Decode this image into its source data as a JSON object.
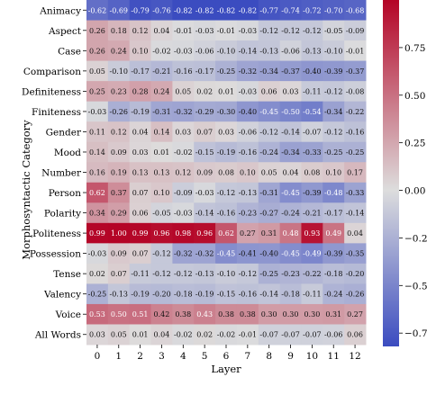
{
  "chart_data": {
    "type": "heatmap",
    "xlabel": "Layer",
    "ylabel": "Morphosyntactic Category",
    "x": [
      "0",
      "1",
      "2",
      "3",
      "4",
      "5",
      "6",
      "7",
      "8",
      "9",
      "10",
      "11",
      "12"
    ],
    "y": [
      "Animacy",
      "Aspect",
      "Case",
      "Comparison",
      "Definiteness",
      "Finiteness",
      "Gender",
      "Mood",
      "Number",
      "Person",
      "Polarity",
      "Politeness",
      "Possession",
      "Tense",
      "Valency",
      "Voice",
      "All Words"
    ],
    "values": [
      [
        -0.62,
        -0.69,
        -0.79,
        -0.76,
        -0.82,
        -0.82,
        -0.82,
        -0.82,
        -0.77,
        -0.74,
        -0.72,
        -0.7,
        -0.68
      ],
      [
        0.26,
        0.18,
        0.12,
        0.04,
        -0.01,
        -0.03,
        -0.01,
        -0.03,
        -0.12,
        -0.12,
        -0.12,
        -0.05,
        -0.09
      ],
      [
        0.26,
        0.24,
        0.1,
        -0.02,
        -0.03,
        -0.06,
        -0.1,
        -0.14,
        -0.13,
        -0.06,
        -0.13,
        -0.1,
        -0.01
      ],
      [
        0.05,
        -0.1,
        -0.17,
        -0.21,
        -0.16,
        -0.17,
        -0.25,
        -0.32,
        -0.34,
        -0.37,
        -0.4,
        -0.39,
        -0.37
      ],
      [
        0.25,
        0.23,
        0.28,
        0.24,
        0.05,
        0.02,
        0.01,
        -0.03,
        0.06,
        0.03,
        -0.11,
        -0.12,
        -0.08
      ],
      [
        -0.03,
        -0.26,
        -0.19,
        -0.31,
        -0.32,
        -0.29,
        -0.3,
        -0.4,
        -0.45,
        -0.5,
        -0.54,
        -0.34,
        -0.22
      ],
      [
        0.11,
        0.12,
        0.04,
        0.14,
        0.03,
        0.07,
        0.03,
        -0.06,
        -0.12,
        -0.14,
        -0.07,
        -0.12,
        -0.16
      ],
      [
        0.14,
        0.09,
        0.03,
        0.01,
        -0.02,
        -0.15,
        -0.19,
        -0.16,
        -0.24,
        -0.34,
        -0.33,
        -0.25,
        -0.25
      ],
      [
        0.16,
        0.19,
        0.13,
        0.13,
        0.12,
        0.09,
        0.08,
        0.1,
        0.05,
        0.04,
        0.08,
        0.1,
        0.17
      ],
      [
        0.62,
        0.37,
        0.07,
        0.1,
        -0.09,
        -0.03,
        -0.12,
        -0.13,
        -0.31,
        -0.45,
        -0.39,
        -0.48,
        -0.33
      ],
      [
        0.34,
        0.29,
        0.06,
        -0.05,
        -0.03,
        -0.14,
        -0.16,
        -0.23,
        -0.27,
        -0.24,
        -0.21,
        -0.17,
        -0.14
      ],
      [
        0.99,
        1.0,
        0.99,
        0.96,
        0.98,
        0.96,
        0.62,
        0.27,
        0.31,
        0.48,
        0.93,
        0.49,
        0.04
      ],
      [
        -0.03,
        0.09,
        0.07,
        -0.12,
        -0.32,
        -0.32,
        -0.45,
        -0.41,
        -0.4,
        -0.45,
        -0.49,
        -0.39,
        -0.35
      ],
      [
        0.02,
        0.07,
        -0.11,
        -0.12,
        -0.12,
        -0.13,
        -0.1,
        -0.12,
        -0.25,
        -0.23,
        -0.22,
        -0.18,
        -0.2
      ],
      [
        -0.25,
        -0.13,
        -0.19,
        -0.2,
        -0.18,
        -0.19,
        -0.15,
        -0.16,
        -0.14,
        -0.18,
        -0.11,
        -0.24,
        -0.26
      ],
      [
        0.53,
        0.5,
        0.51,
        0.42,
        0.38,
        0.43,
        0.38,
        0.38,
        0.3,
        0.3,
        0.3,
        0.31,
        0.27
      ],
      [
        0.03,
        0.05,
        0.01,
        0.04,
        -0.02,
        0.02,
        -0.02,
        -0.01,
        -0.07,
        -0.07,
        -0.07,
        -0.06,
        0.06
      ]
    ],
    "value_labels": [
      [
        "-0.62",
        "-0.69",
        "-0.79",
        "-0.76",
        "-0.82",
        "-0.82",
        "-0.82",
        "-0.82",
        "-0.77",
        "-0.74",
        "-0.72",
        "-0.70",
        "-0.68"
      ],
      [
        "0.26",
        "0.18",
        "0.12",
        "0.04",
        "-0.01",
        "-0.03",
        "-0.01",
        "-0.03",
        "-0.12",
        "-0.12",
        "-0.12",
        "-0.05",
        "-0.09"
      ],
      [
        "0.26",
        "0.24",
        "0.10",
        "-0.02",
        "-0.03",
        "-0.06",
        "-0.10",
        "-0.14",
        "-0.13",
        "-0.06",
        "-0.13",
        "-0.10",
        "-0.01"
      ],
      [
        "0.05",
        "-0.10",
        "-0.17",
        "-0.21",
        "-0.16",
        "-0.17",
        "-0.25",
        "-0.32",
        "-0.34",
        "-0.37",
        "-0.40",
        "-0.39",
        "-0.37"
      ],
      [
        "0.25",
        "0.23",
        "0.28",
        "0.24",
        "0.05",
        "0.02",
        "0.01",
        "-0.03",
        "0.06",
        "0.03",
        "-0.11",
        "-0.12",
        "-0.08"
      ],
      [
        "-0.03",
        "-0.26",
        "-0.19",
        "-0.31",
        "-0.32",
        "-0.29",
        "-0.30",
        "-0.40",
        "-0.45",
        "-0.50",
        "-0.54",
        "-0.34",
        "-0.22"
      ],
      [
        "0.11",
        "0.12",
        "0.04",
        "0.14",
        "0.03",
        "0.07",
        "0.03",
        "-0.06",
        "-0.12",
        "-0.14",
        "-0.07",
        "-0.12",
        "-0.16"
      ],
      [
        "0.14",
        "0.09",
        "0.03",
        "0.01",
        "-0.02",
        "-0.15",
        "-0.19",
        "-0.16",
        "-0.24",
        "-0.34",
        "-0.33",
        "-0.25",
        "-0.25"
      ],
      [
        "0.16",
        "0.19",
        "0.13",
        "0.13",
        "0.12",
        "0.09",
        "0.08",
        "0.10",
        "0.05",
        "0.04",
        "0.08",
        "0.10",
        "0.17"
      ],
      [
        "0.62",
        "0.37",
        "0.07",
        "0.10",
        "-0.09",
        "-0.03",
        "-0.12",
        "-0.13",
        "-0.31",
        "-0.45",
        "-0.39",
        "-0.48",
        "-0.33"
      ],
      [
        "0.34",
        "0.29",
        "0.06",
        "-0.05",
        "-0.03",
        "-0.14",
        "-0.16",
        "-0.23",
        "-0.27",
        "-0.24",
        "-0.21",
        "-0.17",
        "-0.14"
      ],
      [
        "0.99",
        "1.00",
        "0.99",
        "0.96",
        "0.98",
        "0.96",
        "0.62",
        "0.27",
        "0.31",
        "0.48",
        "0.93",
        "0.49",
        "0.04"
      ],
      [
        "-0.03",
        "0.09",
        "0.07",
        "-0.12",
        "-0.32",
        "-0.32",
        "-0.45",
        "-0.41",
        "-0.40",
        "-0.45",
        "-0.49",
        "-0.39",
        "-0.35"
      ],
      [
        "0.02",
        "0.07",
        "-0.11",
        "-0.12",
        "-0.12",
        "-0.13",
        "-0.10",
        "-0.12",
        "-0.25",
        "-0.23",
        "-0.22",
        "-0.18",
        "-0.20"
      ],
      [
        "-0.25",
        "-0.13",
        "-0.19",
        "-0.20",
        "-0.18",
        "-0.19",
        "-0.15",
        "-0.16",
        "-0.14",
        "-0.18",
        "-0.11",
        "-0.24",
        "-0.26"
      ],
      [
        "0.53",
        "0.50",
        "0.51",
        "0.42",
        "0.38",
        "0.43",
        "0.38",
        "0.38",
        "0.30",
        "0.30",
        "0.30",
        "0.31",
        "0.27"
      ],
      [
        "0.03",
        "0.05",
        "0.01",
        "0.04",
        "-0.02",
        "0.02",
        "-0.02",
        "-0.01",
        "-0.07",
        "-0.07",
        "-0.07",
        "-0.06",
        "0.06"
      ]
    ],
    "colorbar": {
      "min": -0.82,
      "max": 1.0,
      "ticks": [
        -0.75,
        -0.5,
        -0.25,
        0.0,
        0.25,
        0.5,
        0.75
      ],
      "tick_labels": [
        "−0.75",
        "−0.50",
        "−0.25",
        "0.00",
        "0.25",
        "0.50",
        "0.75"
      ],
      "colors": [
        "#3b4cc0",
        "#dddddd",
        "#b40426"
      ]
    },
    "grid": false,
    "legend": "colorbar-right"
  }
}
